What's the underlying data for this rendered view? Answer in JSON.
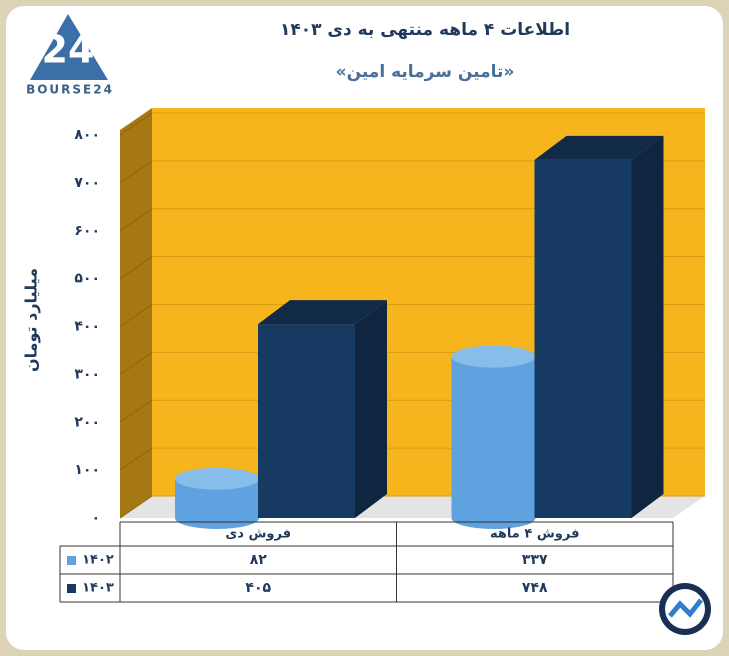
{
  "chart_data": {
    "type": "bar",
    "title": "اطلاعات ۴ ماهه منتهی به دی ۱۴۰۳",
    "subtitle": "«تامین سرمایه امین»",
    "logo_mark": "24",
    "logo": "BOURSE24",
    "y_label": "میلیارد تومان",
    "categories": [
      "فروش دی",
      "فروش ۴ ماهه"
    ],
    "series": [
      {
        "name": "۱۴۰۲",
        "color": "#5ea2e0",
        "values": [
          82,
          337
        ],
        "value_labels": [
          "۸۲",
          "۳۳۷"
        ]
      },
      {
        "name": "۱۴۰۳",
        "color": "#173a63",
        "values": [
          405,
          748
        ],
        "value_labels": [
          "۴۰۵",
          "۷۴۸"
        ]
      }
    ],
    "ylim": [
      0,
      800
    ],
    "yticks": [
      {
        "value": 0,
        "label": "۰"
      },
      {
        "value": 100,
        "label": "۱۰۰"
      },
      {
        "value": 200,
        "label": "۲۰۰"
      },
      {
        "value": 300,
        "label": "۳۰۰"
      },
      {
        "value": 400,
        "label": "۴۰۰"
      },
      {
        "value": 500,
        "label": "۵۰۰"
      },
      {
        "value": 600,
        "label": "۶۰۰"
      },
      {
        "value": 700,
        "label": "۷۰۰"
      },
      {
        "value": 800,
        "label": "۸۰۰"
      }
    ],
    "grid": true
  }
}
